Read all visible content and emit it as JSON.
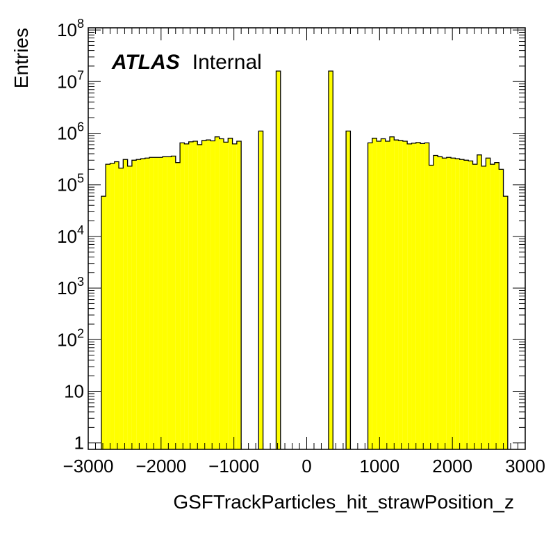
{
  "chart_data": {
    "type": "bar",
    "xlabel": "GSFTrackParticles_hit_strawPosition_z",
    "ylabel": "Entries",
    "ylog": true,
    "xlim": [
      -3000,
      3000
    ],
    "ylim": [
      0.75,
      110000000
    ],
    "bar_color": "#ffff00",
    "edge_color": "#000000",
    "x_ticks": [
      -3000,
      -2000,
      -1000,
      0,
      1000,
      2000,
      3000
    ],
    "x_tick_labels": [
      "−3000",
      "−2000",
      "−1000",
      "0",
      "1000",
      "2000",
      "3000"
    ],
    "y_ticks": [
      1,
      10,
      100,
      1000,
      10000,
      100000,
      1000000,
      10000000,
      100000000
    ],
    "y_tick_labels": [
      {
        "base": "1",
        "exp": ""
      },
      {
        "base": "10",
        "exp": ""
      },
      {
        "base": "10",
        "exp": "2"
      },
      {
        "base": "10",
        "exp": "3"
      },
      {
        "base": "10",
        "exp": "4"
      },
      {
        "base": "10",
        "exp": "5"
      },
      {
        "base": "10",
        "exp": "6"
      },
      {
        "base": "10",
        "exp": "7"
      },
      {
        "base": "10",
        "exp": "8"
      }
    ],
    "bin_width": 60,
    "bins": [
      {
        "x0": -2820,
        "value": 60000
      },
      {
        "x0": -2760,
        "value": 250000
      },
      {
        "x0": -2700,
        "value": 260000
      },
      {
        "x0": -2640,
        "value": 280000
      },
      {
        "x0": -2580,
        "value": 210000
      },
      {
        "x0": -2520,
        "value": 310000
      },
      {
        "x0": -2460,
        "value": 230000
      },
      {
        "x0": -2400,
        "value": 300000
      },
      {
        "x0": -2340,
        "value": 310000
      },
      {
        "x0": -2280,
        "value": 320000
      },
      {
        "x0": -2220,
        "value": 330000
      },
      {
        "x0": -2160,
        "value": 340000
      },
      {
        "x0": -2100,
        "value": 340000
      },
      {
        "x0": -2040,
        "value": 340000
      },
      {
        "x0": -1980,
        "value": 350000
      },
      {
        "x0": -1920,
        "value": 350000
      },
      {
        "x0": -1860,
        "value": 360000
      },
      {
        "x0": -1800,
        "value": 270000
      },
      {
        "x0": -1740,
        "value": 650000
      },
      {
        "x0": -1680,
        "value": 620000
      },
      {
        "x0": -1620,
        "value": 680000
      },
      {
        "x0": -1560,
        "value": 700000
      },
      {
        "x0": -1500,
        "value": 600000
      },
      {
        "x0": -1440,
        "value": 720000
      },
      {
        "x0": -1380,
        "value": 740000
      },
      {
        "x0": -1320,
        "value": 710000
      },
      {
        "x0": -1260,
        "value": 850000
      },
      {
        "x0": -1200,
        "value": 780000
      },
      {
        "x0": -1140,
        "value": 670000
      },
      {
        "x0": -1080,
        "value": 800000
      },
      {
        "x0": -1020,
        "value": 620000
      },
      {
        "x0": -960,
        "value": 700000
      },
      {
        "x0": -660,
        "value": 1100000
      },
      {
        "x0": -420,
        "value": 16000000
      },
      {
        "x0": 300,
        "value": 16000000
      },
      {
        "x0": 540,
        "value": 1100000
      },
      {
        "x0": 840,
        "value": 650000
      },
      {
        "x0": 900,
        "value": 800000
      },
      {
        "x0": 960,
        "value": 700000
      },
      {
        "x0": 1020,
        "value": 780000
      },
      {
        "x0": 1080,
        "value": 700000
      },
      {
        "x0": 1140,
        "value": 850000
      },
      {
        "x0": 1200,
        "value": 740000
      },
      {
        "x0": 1260,
        "value": 720000
      },
      {
        "x0": 1320,
        "value": 700000
      },
      {
        "x0": 1380,
        "value": 620000
      },
      {
        "x0": 1440,
        "value": 640000
      },
      {
        "x0": 1500,
        "value": 660000
      },
      {
        "x0": 1560,
        "value": 630000
      },
      {
        "x0": 1620,
        "value": 650000
      },
      {
        "x0": 1680,
        "value": 240000
      },
      {
        "x0": 1740,
        "value": 370000
      },
      {
        "x0": 1800,
        "value": 350000
      },
      {
        "x0": 1860,
        "value": 330000
      },
      {
        "x0": 1920,
        "value": 340000
      },
      {
        "x0": 1980,
        "value": 330000
      },
      {
        "x0": 2040,
        "value": 320000
      },
      {
        "x0": 2100,
        "value": 310000
      },
      {
        "x0": 2160,
        "value": 300000
      },
      {
        "x0": 2220,
        "value": 290000
      },
      {
        "x0": 2280,
        "value": 250000
      },
      {
        "x0": 2340,
        "value": 380000
      },
      {
        "x0": 2400,
        "value": 230000
      },
      {
        "x0": 2460,
        "value": 330000
      },
      {
        "x0": 2520,
        "value": 250000
      },
      {
        "x0": 2580,
        "value": 270000
      },
      {
        "x0": 2640,
        "value": 200000
      },
      {
        "x0": 2700,
        "value": 60000
      }
    ],
    "annotation": {
      "bold": "ATLAS",
      "normal": "Internal"
    }
  }
}
